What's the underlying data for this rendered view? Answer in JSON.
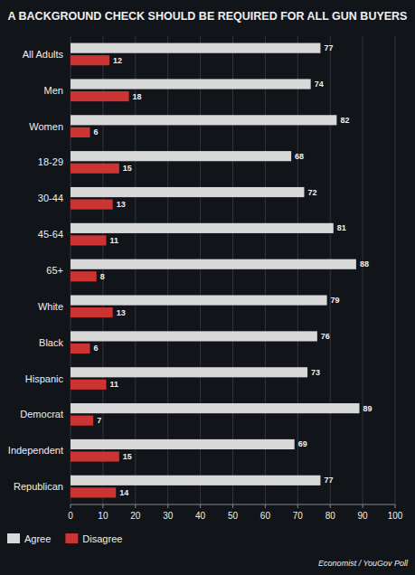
{
  "chart_data": {
    "type": "bar",
    "orientation": "horizontal",
    "title": "A BACKGROUND CHECK SHOULD BE REQUIRED FOR ALL GUN BUYERS",
    "categories": [
      "All Adults",
      "Men",
      "Women",
      "18-29",
      "30-44",
      "45-64",
      "65+",
      "White",
      "Black",
      "Hispanic",
      "Democrat",
      "Independent",
      "Republican"
    ],
    "series": [
      {
        "name": "Agree",
        "color": "#d8d8d8",
        "values": [
          77,
          74,
          82,
          68,
          72,
          81,
          88,
          79,
          76,
          73,
          89,
          69,
          77
        ]
      },
      {
        "name": "Disagree",
        "color": "#cc3333",
        "values": [
          12,
          18,
          6,
          15,
          13,
          11,
          8,
          13,
          6,
          11,
          7,
          15,
          14
        ]
      }
    ],
    "xlim": [
      0,
      100
    ],
    "xticks": [
      0,
      10,
      20,
      30,
      40,
      50,
      60,
      70,
      80,
      90,
      100
    ],
    "grid": true,
    "data_labels": true,
    "legend": "lower left",
    "annotations": [
      "Economist / YouGov Poll"
    ]
  }
}
